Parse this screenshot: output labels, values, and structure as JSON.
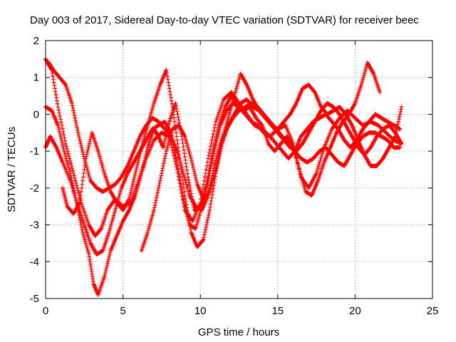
{
  "chart_data": {
    "type": "scatter",
    "title": "Day 003 of 2017, Sidereal Day-to-day VTEC variation (SDTVAR) for receiver beec",
    "xlabel": "GPS time / hours",
    "ylabel": "SDTVAR / TECUs",
    "xlim": [
      0,
      25
    ],
    "ylim": [
      -5,
      2
    ],
    "xticks": [
      0,
      5,
      10,
      15,
      20,
      25
    ],
    "yticks": [
      -5,
      -4,
      -3,
      -2,
      -1,
      0,
      1,
      2
    ],
    "grid": true,
    "marker": "+",
    "color": "#ff0000",
    "series": [
      {
        "x": [
          0.0,
          0.4,
          0.8,
          1.3,
          1.8,
          2.3,
          2.8,
          3.2,
          3.6,
          4.0,
          4.5,
          5.0,
          5.5,
          6.0,
          6.5,
          7.0,
          7.5,
          8.0,
          8.5,
          9.0,
          9.5,
          10.0,
          10.5,
          11.0,
          11.5,
          12.0,
          12.5,
          13.0,
          13.5,
          14.0,
          14.5,
          15.0,
          15.5,
          16.0,
          16.5,
          17.0,
          17.5,
          18.0,
          18.5,
          19.0,
          19.5,
          20.0,
          20.5,
          21.0,
          21.5,
          22.0,
          22.5,
          23.0
        ],
        "y": [
          1.5,
          1.2,
          0.2,
          -0.8,
          -1.6,
          -2.4,
          -3.0,
          -3.3,
          -3.1,
          -2.6,
          -2.3,
          -2.5,
          -2.4,
          -1.8,
          -1.2,
          -0.7,
          -0.5,
          -0.6,
          -1.5,
          -2.6,
          -2.9,
          -2.4,
          -1.2,
          -0.2,
          0.4,
          0.6,
          0.3,
          0.0,
          -0.3,
          -0.4,
          -0.6,
          -0.4,
          -0.3,
          -0.8,
          -1.7,
          -2.0,
          -1.6,
          -0.9,
          -0.4,
          -0.1,
          0.1,
          -0.1,
          -0.3,
          -0.2,
          -0.3,
          -0.5,
          -0.7,
          -0.8
        ]
      },
      {
        "x": [
          0.0,
          0.4,
          0.8,
          1.2,
          1.6,
          2.0,
          2.4,
          2.8,
          3.1,
          3.4,
          3.8,
          4.2,
          4.6,
          5.0,
          5.4,
          5.8,
          6.2,
          6.6,
          7.0,
          7.3,
          7.6,
          8.0,
          8.4,
          8.8,
          9.2,
          9.6,
          10.0,
          10.4,
          10.8,
          11.2,
          11.6,
          12.0,
          12.4,
          12.8,
          13.2,
          13.6,
          14.0,
          14.4,
          14.8,
          15.2,
          15.6,
          16.0,
          16.4,
          16.8,
          17.2,
          17.6,
          18.0,
          18.4,
          18.8,
          19.2,
          19.6,
          20.0,
          20.4,
          20.8,
          21.2,
          21.6
        ],
        "y": [
          0.2,
          0.1,
          -0.3,
          -1.0,
          -1.6,
          -2.4,
          -3.2,
          -3.8,
          -4.6,
          -4.9,
          -4.4,
          -3.7,
          -3.3,
          -2.9,
          -2.6,
          -2.2,
          -1.6,
          -0.9,
          -0.4,
          -0.6,
          -0.9,
          -0.2,
          0.3,
          -0.6,
          -1.7,
          -2.6,
          -2.5,
          -1.9,
          -1.0,
          -0.3,
          0.2,
          0.5,
          0.3,
          0.1,
          0.2,
          -0.1,
          -0.3,
          -0.8,
          -1.0,
          -0.8,
          -0.6,
          -0.9,
          -1.5,
          -2.1,
          -2.2,
          -1.8,
          -1.3,
          -0.9,
          -0.5,
          -0.2,
          0.0,
          0.3,
          0.8,
          1.4,
          1.1,
          0.6
        ]
      },
      {
        "x": [
          0.0,
          0.3,
          0.7,
          1.1,
          1.6,
          2.1,
          2.5,
          2.9,
          3.3,
          3.7,
          4.1,
          4.5,
          4.9,
          5.3,
          5.7,
          6.1,
          6.5,
          6.9,
          7.3,
          7.7,
          8.1,
          8.5,
          8.9,
          9.3,
          9.7,
          10.1,
          10.5,
          10.9,
          11.3,
          11.7,
          12.1,
          12.5,
          12.9,
          13.3,
          13.7,
          14.1,
          14.5,
          14.9,
          15.3,
          15.7,
          16.1,
          16.5,
          16.9,
          17.3,
          17.7,
          18.1,
          18.5,
          18.9,
          19.3,
          19.7,
          20.1,
          20.5,
          20.9,
          21.3,
          21.7,
          22.1,
          22.5,
          22.9
        ],
        "y": [
          -0.9,
          -0.6,
          -0.9,
          -1.3,
          -1.8,
          -2.5,
          -3.0,
          -3.5,
          -3.8,
          -3.7,
          -3.2,
          -2.6,
          -2.0,
          -1.6,
          -1.3,
          -1.0,
          -0.7,
          -0.4,
          -0.3,
          -0.2,
          -0.5,
          -1.3,
          -2.3,
          -3.0,
          -3.1,
          -2.5,
          -1.8,
          -1.0,
          -0.3,
          0.1,
          0.3,
          0.2,
          0.0,
          -0.2,
          -0.3,
          -0.5,
          -0.6,
          -0.8,
          -1.0,
          -1.2,
          -1.0,
          -0.6,
          -0.4,
          -0.2,
          -0.1,
          0.0,
          -0.2,
          -0.4,
          -0.7,
          -0.9,
          -0.7,
          -0.4,
          -0.2,
          0.0,
          -0.1,
          -0.2,
          -0.3,
          -0.4
        ]
      },
      {
        "x": [
          0.2,
          0.5,
          0.9,
          1.3,
          1.7,
          2.1,
          2.5,
          2.9,
          3.3,
          3.7,
          4.1,
          4.5,
          4.9,
          5.3,
          5.7,
          6.1,
          6.5,
          6.9,
          7.3,
          7.7,
          8.1,
          8.5,
          8.9,
          9.3,
          9.7,
          10.1,
          10.5,
          10.9,
          11.3,
          11.7,
          12.1,
          12.5,
          12.9,
          13.3,
          13.7,
          14.1,
          14.5,
          14.9,
          15.3,
          15.7,
          16.1,
          16.5,
          16.9,
          17.3,
          17.7,
          18.1,
          18.5,
          18.9,
          19.3,
          19.7,
          20.1,
          20.5,
          20.9,
          21.3,
          21.7,
          22.1,
          22.5,
          22.9
        ],
        "y": [
          1.4,
          1.2,
          1.0,
          0.8,
          0.3,
          -0.5,
          -1.2,
          -1.8,
          -2.0,
          -2.1,
          -2.0,
          -1.9,
          -1.7,
          -1.4,
          -1.0,
          -0.6,
          -0.3,
          -0.1,
          -0.2,
          -0.4,
          -0.6,
          -1.0,
          -1.6,
          -2.2,
          -2.5,
          -2.6,
          -2.2,
          -1.4,
          -0.8,
          -0.4,
          -0.1,
          0.1,
          0.2,
          0.3,
          0.2,
          0.0,
          -0.2,
          -0.4,
          -0.6,
          -0.8,
          -1.0,
          -1.2,
          -1.3,
          -1.2,
          -1.0,
          -0.9,
          -1.1,
          -1.3,
          -1.4,
          -1.1,
          -0.8,
          -0.6,
          -0.5,
          -0.5,
          -0.6,
          -0.7,
          -0.9,
          -0.9
        ]
      },
      {
        "x": [
          1.1,
          1.4,
          1.8,
          2.2,
          2.6,
          3.0,
          3.4,
          3.8,
          4.2,
          4.6,
          5.0,
          5.4,
          5.8,
          6.2,
          6.6,
          7.0,
          7.4,
          7.8,
          8.2,
          8.6,
          9.0,
          9.4,
          9.8,
          10.2,
          10.6,
          11.0,
          11.4,
          11.8,
          12.2,
          12.6,
          13.0,
          13.4,
          13.8,
          14.2,
          14.6,
          15.0,
          15.4,
          15.8,
          16.2,
          16.6,
          17.0,
          17.4,
          17.8,
          18.2,
          18.6,
          19.0,
          19.4,
          19.8,
          20.2,
          20.6,
          21.0,
          21.4,
          21.8,
          22.2,
          22.6,
          23.0
        ],
        "y": [
          -2.0,
          -2.5,
          -2.7,
          -2.4,
          -1.2,
          -0.5,
          -1.0,
          -1.6,
          -2.1,
          -2.4,
          -2.6,
          -2.3,
          -1.6,
          -0.9,
          -0.3,
          0.3,
          0.8,
          1.2,
          0.2,
          -1.0,
          -2.2,
          -3.2,
          -3.6,
          -3.4,
          -2.6,
          -1.6,
          -0.8,
          -0.3,
          0.0,
          0.3,
          0.4,
          0.2,
          0.1,
          -0.1,
          -0.3,
          -0.4,
          -0.2,
          0.0,
          0.3,
          0.7,
          0.8,
          0.6,
          0.2,
          0.0,
          0.1,
          0.2,
          0.0,
          -0.3,
          -0.7,
          -1.1,
          -1.4,
          -1.4,
          -1.2,
          -0.9,
          -0.6,
          0.2
        ]
      },
      {
        "x": [
          6.2,
          6.6,
          7.0,
          7.4,
          7.8,
          8.2,
          8.6,
          9.0,
          9.4,
          9.8,
          10.2,
          10.6,
          11.0,
          11.4,
          11.8,
          12.2,
          12.6,
          13.0,
          13.4,
          13.8,
          14.2,
          14.6,
          15.0,
          15.4,
          15.8,
          16.2,
          16.6,
          17.0,
          17.4,
          17.8,
          18.2,
          18.6,
          19.0,
          19.4,
          19.8,
          20.2,
          20.6,
          21.0,
          21.4,
          21.8,
          22.2,
          22.6,
          23.0
        ],
        "y": [
          -3.7,
          -3.2,
          -2.6,
          -1.8,
          -1.0,
          -0.4,
          -0.3,
          -0.6,
          -1.2,
          -1.9,
          -2.3,
          -2.1,
          -1.5,
          -0.7,
          -0.1,
          0.5,
          1.1,
          0.8,
          0.4,
          0.1,
          -0.1,
          -0.3,
          -0.5,
          -0.7,
          -0.9,
          -1.0,
          -0.8,
          -0.5,
          -0.2,
          0.1,
          0.3,
          0.2,
          0.0,
          -0.3,
          -0.6,
          -0.9,
          -1.1,
          -0.9,
          -0.6,
          -0.4,
          -0.3,
          -0.5,
          -0.8
        ]
      }
    ]
  }
}
